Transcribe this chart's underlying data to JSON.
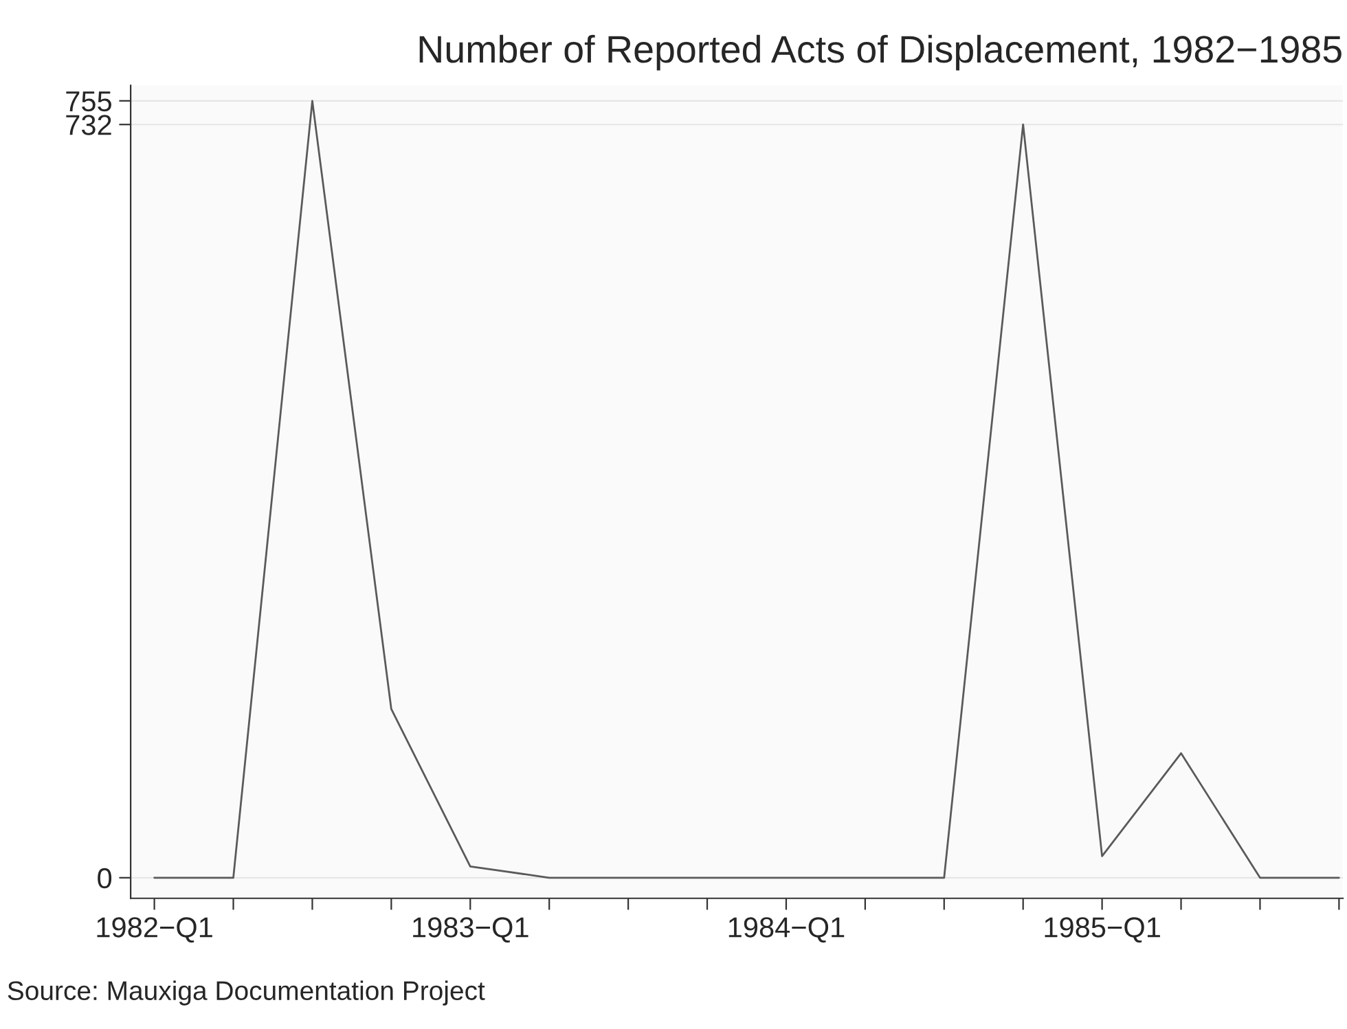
{
  "chart_data": {
    "type": "line",
    "title": "Number of Reported Acts of Displacement, 1982−1985",
    "categories": [
      "1982−Q1",
      null,
      null,
      null,
      "1983−Q1",
      null,
      null,
      null,
      "1984−Q1",
      null,
      null,
      null,
      "1985−Q1",
      null,
      null,
      null
    ],
    "series": [
      {
        "color": "#5a5a5a",
        "values": [
          0,
          0,
          755,
          164,
          11,
          0,
          0,
          0,
          0,
          0,
          0,
          732,
          21,
          121,
          0,
          0
        ]
      }
    ],
    "ylim": [
      -20,
      770
    ],
    "yticks": [
      0,
      732,
      755
    ],
    "grid": "y",
    "marker": "none",
    "line_style": "solid",
    "annotations": [
      "Source: Mauxiga Documentation Project"
    ]
  }
}
